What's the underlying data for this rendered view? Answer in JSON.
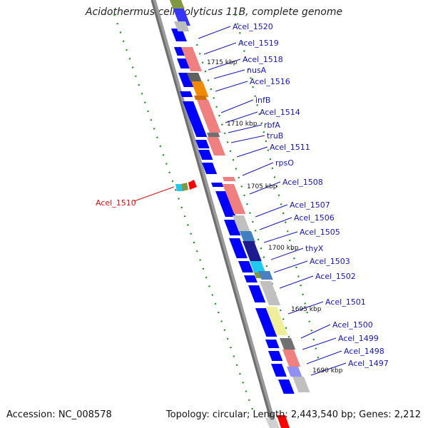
{
  "title": "Acidothermus cellulolyticus 11B, complete genome",
  "footer": {
    "accession": "Accession: NC_008578",
    "topology": "Topology: circular; Length: 2,443,540 bp; Genes: 2,212"
  },
  "colors": {
    "backbone": "#808080",
    "cds_arrow": "#0000ff",
    "label": "#1616b0",
    "highlight_label": "#d01010",
    "tick_dots": "#1a8c1a"
  },
  "tick_labels": [
    "1715 kbp",
    "1710 kbp",
    "1705 kbp",
    "1700 kbp",
    "1695 kbp",
    "1690 kbp"
  ],
  "gene_labels": [
    "Acel_1520",
    "Acel_1519",
    "Acel_1518",
    "nusA",
    "Acel_1516",
    "infB",
    "Acel_1514",
    "rbfA",
    "truB",
    "Acel_1511",
    "rpsO",
    "Acel_1508",
    "Acel_1507",
    "Acel_1506",
    "Acel_1505",
    "thyX",
    "Acel_1503",
    "Acel_1502",
    "Acel_1501",
    "Acel_1500",
    "Acel_1499",
    "Acel_1498",
    "Acel_1497"
  ],
  "highlight_label": "Acel_1510"
}
